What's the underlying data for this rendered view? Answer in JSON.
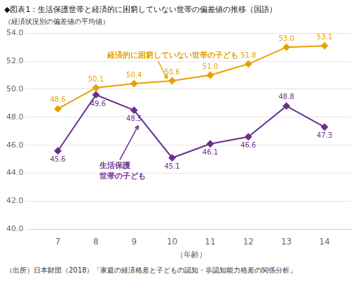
{
  "chart_data": {
    "type": "line",
    "title": "◆図表1：生活保護世帯と経済的に困窮していない世帯の偏差値の推移（国語）",
    "subtitle": "（経済状況別の偏差値の平均値）",
    "xlabel": "（年齢）",
    "source": "（出所）日本財団（2018）「家庭の経済格差と子どもの認知・非認知能力格差の関係分析」",
    "x": [
      7,
      8,
      9,
      10,
      11,
      12,
      13,
      14
    ],
    "series": [
      {
        "color": "#E8A000",
        "values": [
          48.6,
          50.1,
          50.4,
          50.6,
          51.0,
          51.8,
          53.0,
          53.1
        ],
        "value_labels": [
          "48.6",
          "50.1",
          "50.4",
          "50.6",
          "51.0",
          "51.8",
          "53.0",
          "53.1"
        ]
      },
      {
        "color": "#6B2F8E",
        "values": [
          45.6,
          49.6,
          48.5,
          45.1,
          46.1,
          46.6,
          48.8,
          47.3
        ]
      }
    ],
    "annotations": [
      {
        "text": "経済的に困窮していない世帯の子ども"
      },
      {
        "text": [
          "生活保護",
          "世帯の子ども"
        ]
      }
    ],
    "xlim": [
      6.3,
      14.7
    ],
    "xticks": [
      7,
      8,
      9,
      10,
      11,
      12,
      13,
      14
    ],
    "ylim": [
      40.0,
      54.0
    ],
    "yticks": [
      {
        "value": 40.0,
        "label": "40.0"
      },
      {
        "value": 42.0,
        "label": "42.0"
      },
      {
        "value": 44.0,
        "label": "44.0"
      },
      {
        "value": 46.0,
        "label": "46.0"
      },
      {
        "value": 48.0,
        "label": "48.0"
      },
      {
        "value": 50.0,
        "label": "50.0"
      },
      {
        "value": 52.0,
        "label": "52.0"
      },
      {
        "value": 54.0,
        "label": "54.0"
      }
    ],
    "grid": true,
    "data_labels": true,
    "marker": "diamond"
  }
}
